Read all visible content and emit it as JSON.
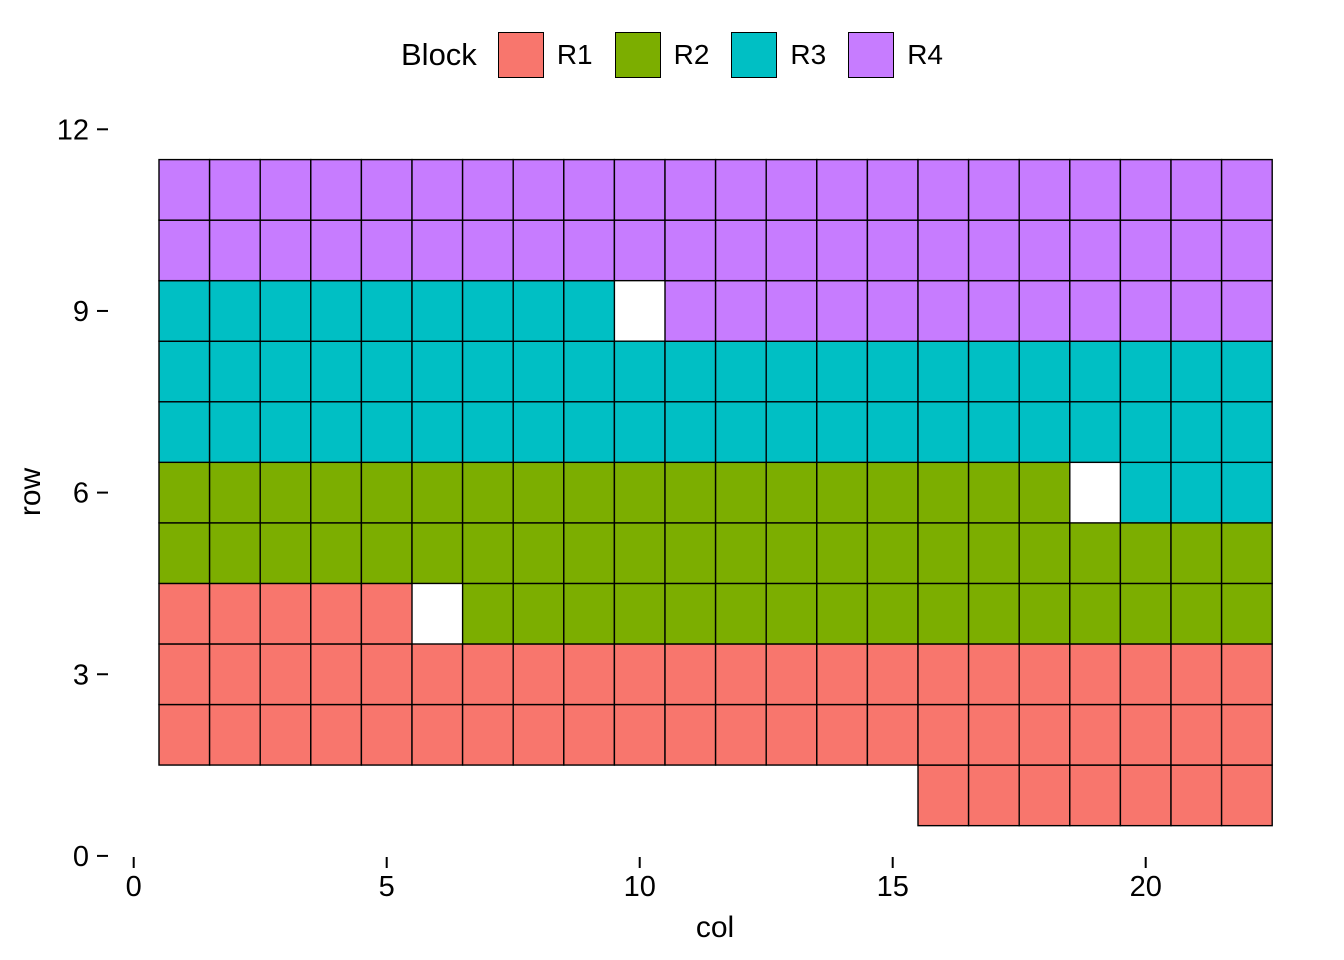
{
  "chart_data": {
    "type": "heatmap",
    "xlabel": "col",
    "ylabel": "row",
    "x_ticks": [
      0,
      5,
      10,
      15,
      20
    ],
    "y_ticks": [
      0,
      3,
      6,
      9,
      12
    ],
    "xlim": [
      -0.5,
      23
    ],
    "ylim": [
      0,
      12.1
    ],
    "grid": "off",
    "tile_border_color": "#000000",
    "text_color": "#000000",
    "legend": {
      "title": "Block",
      "position": "top"
    },
    "series": [
      {
        "name": "R1",
        "color": "#F8766D",
        "runs": [
          {
            "row": 1,
            "cols": [
              16,
              22
            ]
          },
          {
            "row": 2,
            "cols": [
              1,
              22
            ]
          },
          {
            "row": 3,
            "cols": [
              1,
              22
            ]
          },
          {
            "row": 4,
            "cols": [
              1,
              5
            ]
          }
        ]
      },
      {
        "name": "R2",
        "color": "#7CAE00",
        "runs": [
          {
            "row": 4,
            "cols": [
              7,
              22
            ]
          },
          {
            "row": 5,
            "cols": [
              1,
              22
            ]
          },
          {
            "row": 6,
            "cols": [
              1,
              18
            ]
          }
        ]
      },
      {
        "name": "R3",
        "color": "#00BFC4",
        "runs": [
          {
            "row": 6,
            "cols": [
              20,
              22
            ]
          },
          {
            "row": 7,
            "cols": [
              1,
              22
            ]
          },
          {
            "row": 8,
            "cols": [
              1,
              22
            ]
          },
          {
            "row": 9,
            "cols": [
              1,
              9
            ]
          }
        ]
      },
      {
        "name": "R4",
        "color": "#C77CFF",
        "runs": [
          {
            "row": 9,
            "cols": [
              11,
              22
            ]
          },
          {
            "row": 10,
            "cols": [
              1,
              22
            ]
          },
          {
            "row": 11,
            "cols": [
              1,
              22
            ]
          }
        ]
      }
    ],
    "white_gap_cells": [
      {
        "row": 9,
        "col": 10
      },
      {
        "row": 6,
        "col": 19
      },
      {
        "row": 4,
        "col": 6
      }
    ]
  }
}
